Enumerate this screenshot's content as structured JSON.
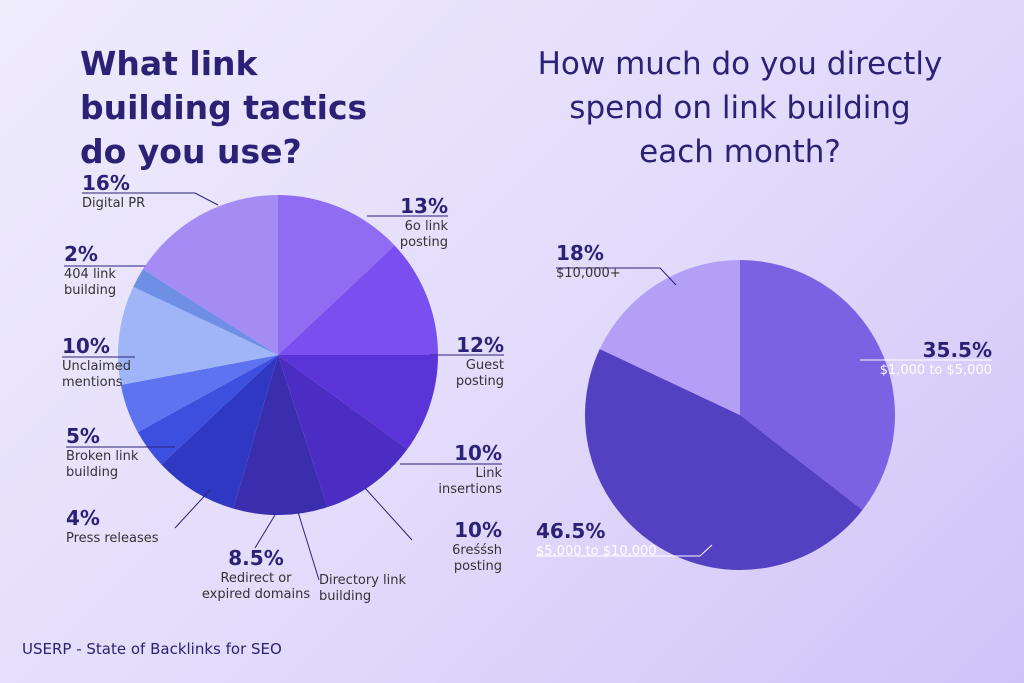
{
  "chart_data": [
    {
      "type": "pie",
      "title": "What link building tactics do you use?",
      "categories": [
        "6o link posting",
        "Guest posting",
        "Link insertions",
        "6reśśsh posting",
        "Directory link building",
        "Redirect or expired domains",
        "Press releases",
        "Broken link building",
        "Unclaimed mentions",
        "404 link building",
        "Digital PR"
      ],
      "values": [
        13,
        12,
        10,
        10,
        9.5,
        8.5,
        4,
        5,
        10,
        2,
        16
      ],
      "value_labels": [
        "13%",
        "12%",
        "10%",
        "10%",
        null,
        "8.5%",
        "4%",
        "5%",
        "10%",
        "2%",
        "16%"
      ],
      "colors": [
        "#8f6cf2",
        "#7a4ff0",
        "#5b34d8",
        "#4b2dc3",
        "#3b2eae",
        "#2f38c2",
        "#3c4fdf",
        "#5d73f0",
        "#9fb5f7",
        "#6f8fe6",
        "#a58cf5"
      ]
    },
    {
      "type": "pie",
      "title": "How much do you directly spend on link building each month?",
      "categories": [
        "$1,000 to $5,000",
        "$5,000 to $10,000",
        "$10,000+"
      ],
      "values": [
        35.5,
        46.5,
        18
      ],
      "value_labels": [
        "35.5%",
        "46.5%",
        "18%"
      ],
      "colors": [
        "#7b62e2",
        "#5341c2",
        "#b3a0f6"
      ]
    }
  ],
  "source": "USERP - State of Backlinks for SEO"
}
